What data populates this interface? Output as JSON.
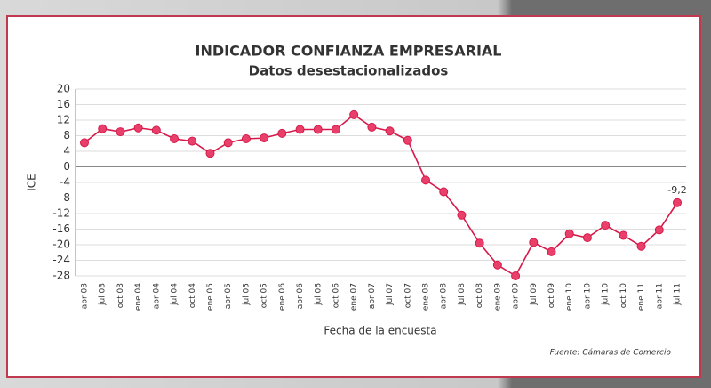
{
  "chart_data": {
    "type": "line",
    "title": "INDICADOR CONFIANZA EMPRESARIAL",
    "subtitle": "Datos desestacionalizados",
    "y_label": "ICE",
    "x_label": "Fecha de la encuesta",
    "source": "Fuente: Cámaras de Comercio",
    "categories": [
      "abr 03",
      "jul 03",
      "oct 03",
      "ene 04",
      "abr 04",
      "jul 04",
      "oct 04",
      "ene 05",
      "abr 05",
      "jul 05",
      "oct 05",
      "ene 06",
      "abr 06",
      "jul 06",
      "oct 06",
      "ene 07",
      "abr 07",
      "jul 07",
      "oct 07",
      "ene 08",
      "abr 08",
      "jul 08",
      "oct 08",
      "ene 09",
      "abr 09",
      "jul 09",
      "oct 09",
      "ene 10",
      "abr 10",
      "jul 10",
      "oct 10",
      "ene 11",
      "abr 11",
      "jul 11"
    ],
    "values": [
      6.2,
      9.8,
      9,
      10,
      9.4,
      7.2,
      6.6,
      3.5,
      6.2,
      7.2,
      7.4,
      8.6,
      9.6,
      9.6,
      9.6,
      13.4,
      10.2,
      9.2,
      6.8,
      -3.4,
      -6.4,
      -12.4,
      -19.6,
      -25.2,
      -28,
      -19.4,
      -21.8,
      -17.2,
      -18.2,
      -15,
      -17.6,
      -20.4,
      -16.2,
      -9.2
    ],
    "value_labels": [
      null,
      null,
      null,
      null,
      null,
      null,
      null,
      null,
      null,
      null,
      null,
      null,
      null,
      null,
      null,
      null,
      null,
      null,
      null,
      null,
      null,
      null,
      null,
      null,
      null,
      null,
      null,
      null,
      null,
      null,
      null,
      null,
      null,
      "-9,2"
    ],
    "color": "#d6194a",
    "ylim": [
      -28,
      20
    ],
    "yticks": [
      20,
      16,
      12,
      8,
      4,
      0,
      -4,
      -8,
      -12,
      -16,
      -20,
      -24,
      -28
    ],
    "grid": true
  }
}
